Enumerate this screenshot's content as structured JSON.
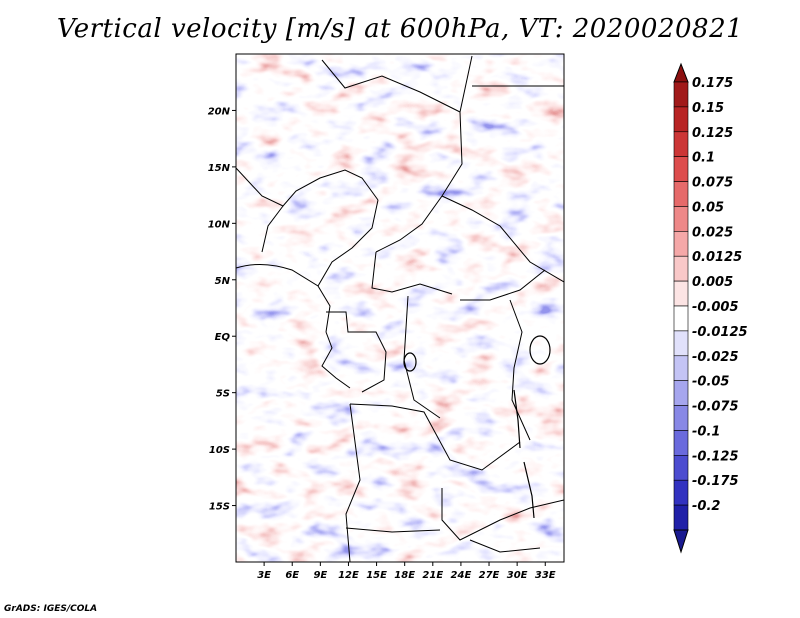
{
  "title": "Vertical velocity [m/s] at 600hPa, VT: 2020020821",
  "credit": "GrADS: IGES/COLA",
  "map": {
    "lon_range": [
      0,
      35
    ],
    "lat_range": [
      -20,
      25
    ],
    "lat_ticks": [
      {
        "value": 20,
        "label": "20N"
      },
      {
        "value": 15,
        "label": "15N"
      },
      {
        "value": 10,
        "label": "10N"
      },
      {
        "value": 5,
        "label": "5N"
      },
      {
        "value": 0,
        "label": "EQ"
      },
      {
        "value": -5,
        "label": "5S"
      },
      {
        "value": -10,
        "label": "10S"
      },
      {
        "value": -15,
        "label": "15S"
      }
    ],
    "lon_ticks": [
      {
        "value": 3,
        "label": "3E"
      },
      {
        "value": 6,
        "label": "6E"
      },
      {
        "value": 9,
        "label": "9E"
      },
      {
        "value": 12,
        "label": "12E"
      },
      {
        "value": 15,
        "label": "15E"
      },
      {
        "value": 18,
        "label": "18E"
      },
      {
        "value": 21,
        "label": "21E"
      },
      {
        "value": 24,
        "label": "24E"
      },
      {
        "value": 27,
        "label": "27E"
      },
      {
        "value": 30,
        "label": "30E"
      },
      {
        "value": 33,
        "label": "33E"
      }
    ]
  },
  "colorbar": {
    "levels": [
      {
        "label": "0.175",
        "color": "#a11a1a"
      },
      {
        "label": "0.15",
        "color": "#b82424"
      },
      {
        "label": "0.125",
        "color": "#cc3636"
      },
      {
        "label": "0.1",
        "color": "#dd4d4d"
      },
      {
        "label": "0.075",
        "color": "#e66a6a"
      },
      {
        "label": "0.05",
        "color": "#ee8888"
      },
      {
        "label": "0.025",
        "color": "#f5a8a8"
      },
      {
        "label": "0.0125",
        "color": "#f9c8c8"
      },
      {
        "label": "0.005",
        "color": "#fce4e4"
      },
      {
        "label": "-0.005",
        "color": "#ffffff"
      },
      {
        "label": "-0.0125",
        "color": "#e1e1fb"
      },
      {
        "label": "-0.025",
        "color": "#c4c4f5"
      },
      {
        "label": "-0.05",
        "color": "#a6a6ee"
      },
      {
        "label": "-0.075",
        "color": "#8888e6"
      },
      {
        "label": "-0.1",
        "color": "#6a6add"
      },
      {
        "label": "-0.125",
        "color": "#4c4cd0"
      },
      {
        "label": "-0.175",
        "color": "#3232c0"
      },
      {
        "label": "-0.2",
        "color": "#2020a8"
      }
    ],
    "top_arrow_color": "#8c1010",
    "bottom_arrow_color": "#1a1a90"
  }
}
